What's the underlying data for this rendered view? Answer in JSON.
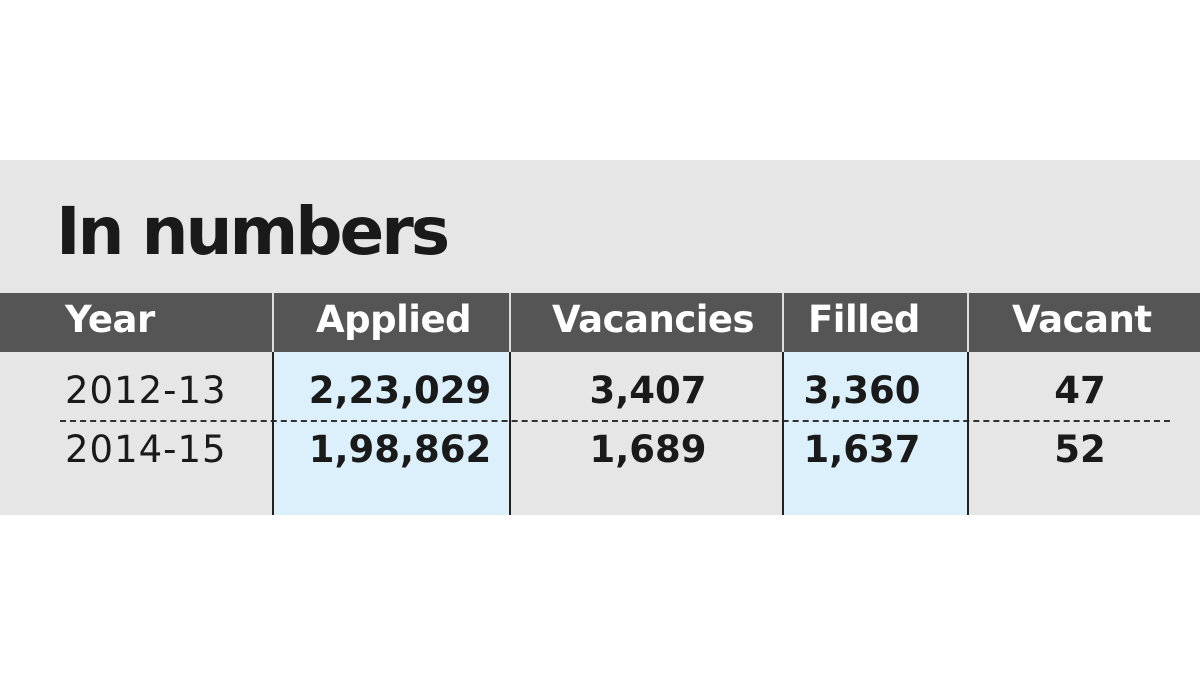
{
  "header": {
    "title": "In numbers"
  },
  "table": {
    "columns": [
      "Year",
      "Applied",
      "Vacancies",
      "Filled",
      "Vacant"
    ],
    "rows": [
      [
        "2012-13",
        "2,23,029",
        "3,407",
        "3,360",
        "47"
      ],
      [
        "2014-15",
        "1,98,862",
        "1,689",
        "1,637",
        "52"
      ]
    ]
  }
}
